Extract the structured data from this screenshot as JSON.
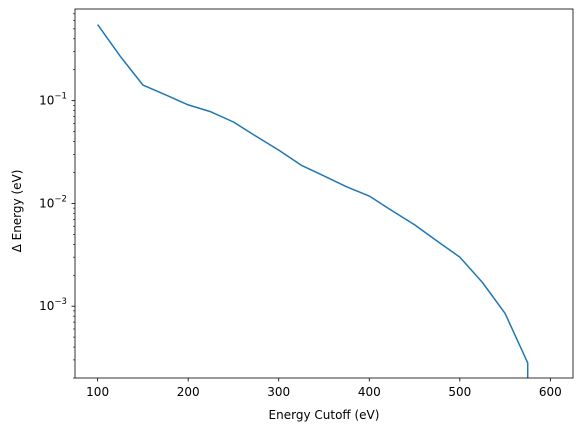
{
  "chart_data": {
    "type": "line",
    "title": "",
    "xlabel": "Energy Cutoff (eV)",
    "ylabel": "Δ Energy (eV)",
    "yscale": "log",
    "xlim": [
      75,
      625
    ],
    "ylim": [
      0.0002,
      0.78
    ],
    "grid": false,
    "legend": "none",
    "x_ticks": [
      {
        "value": 100,
        "label": "100"
      },
      {
        "value": 200,
        "label": "200"
      },
      {
        "value": 300,
        "label": "300"
      },
      {
        "value": 400,
        "label": "400"
      },
      {
        "value": 500,
        "label": "500"
      },
      {
        "value": 600,
        "label": "600"
      }
    ],
    "y_ticks": [
      {
        "value": 0.001,
        "base": "10",
        "exp": "−3"
      },
      {
        "value": 0.01,
        "base": "10",
        "exp": "−2"
      },
      {
        "value": 0.1,
        "base": "10",
        "exp": "−1"
      }
    ],
    "series": [
      {
        "color": "#1f77b4",
        "x": [
          100,
          125,
          150,
          175,
          200,
          225,
          250,
          275,
          300,
          325,
          350,
          375,
          400,
          425,
          450,
          475,
          500,
          525,
          550,
          575,
          575
        ],
        "y": [
          0.55,
          0.27,
          0.142,
          0.114,
          0.091,
          0.078,
          0.062,
          0.045,
          0.033,
          0.0235,
          0.0185,
          0.0145,
          0.0118,
          0.0085,
          0.0062,
          0.0043,
          0.003,
          0.0017,
          0.00085,
          0.00028,
          0.0002
        ]
      }
    ]
  }
}
